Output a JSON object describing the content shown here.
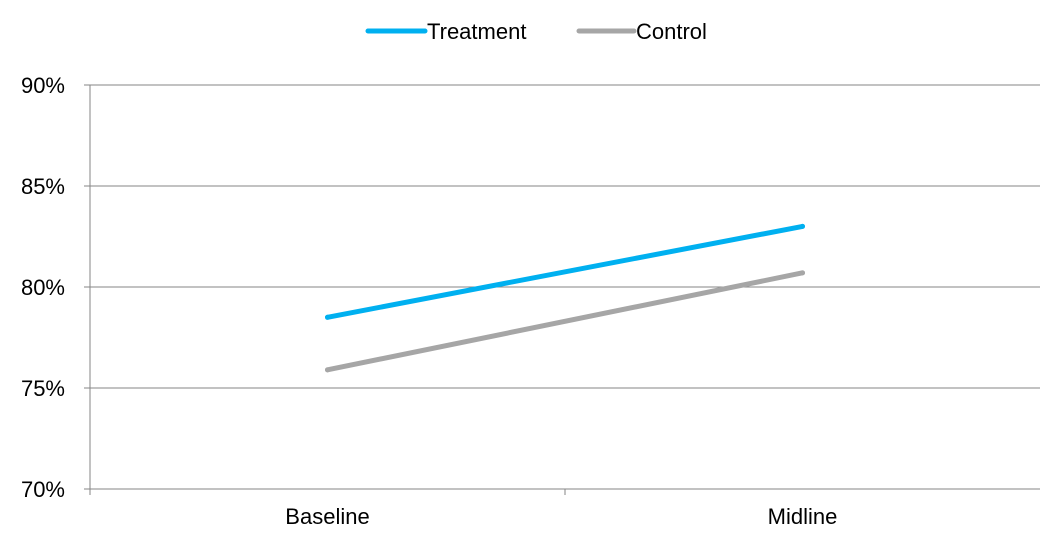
{
  "chart_data": {
    "type": "line",
    "title": "",
    "xlabel": "",
    "ylabel": "",
    "categories": [
      "Baseline",
      "Midline"
    ],
    "ylim": [
      0.7,
      0.9
    ],
    "yticks": [
      0.7,
      0.75,
      0.8,
      0.85,
      0.9
    ],
    "ytick_labels": [
      "70%",
      "75%",
      "80%",
      "85%",
      "90%"
    ],
    "grid": "horizontal",
    "legend_position": "top-center",
    "series": [
      {
        "name": "Treatment",
        "values": [
          0.785,
          0.83
        ],
        "color": "#00B0F0"
      },
      {
        "name": "Control",
        "values": [
          0.759,
          0.807
        ],
        "color": "#A6A6A6"
      }
    ]
  }
}
